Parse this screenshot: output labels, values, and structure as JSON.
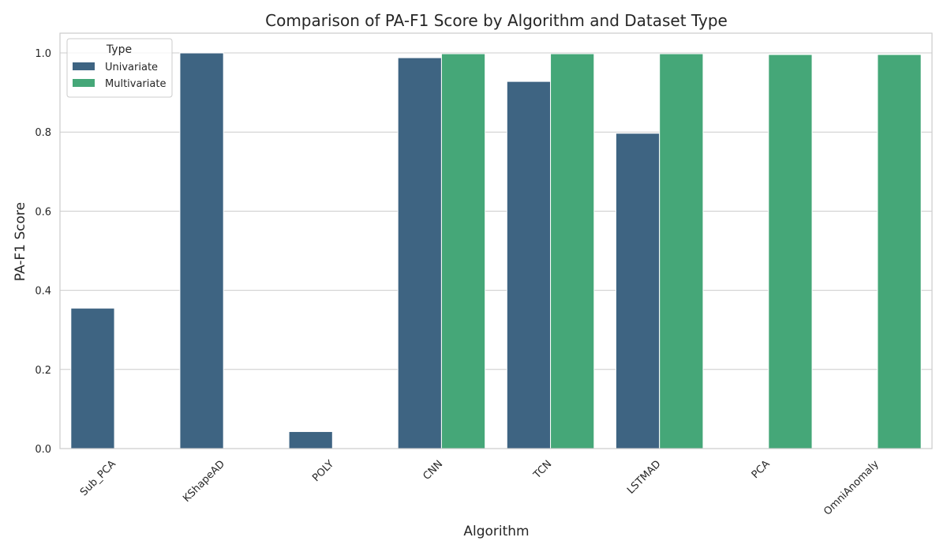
{
  "chart_data": {
    "type": "bar",
    "title": "Comparison of PA-F1 Score by Algorithm and Dataset Type",
    "xlabel": "Algorithm",
    "ylabel": "PA-F1 Score",
    "categories": [
      "Sub_PCA",
      "KShapeAD",
      "POLY",
      "CNN",
      "TCN",
      "LSTMAD",
      "PCA",
      "OmniAnomaly"
    ],
    "series": [
      {
        "name": "Univariate",
        "color": "#3e6482",
        "values": [
          0.355,
          1.0,
          0.043,
          0.988,
          0.928,
          0.797,
          null,
          null
        ]
      },
      {
        "name": "Multivariate",
        "color": "#45a778",
        "values": [
          null,
          null,
          null,
          0.998,
          0.998,
          0.998,
          0.996,
          0.996
        ]
      }
    ],
    "ylim": [
      0,
      1.05
    ],
    "yticks": [
      0.0,
      0.2,
      0.4,
      0.6,
      0.8,
      1.0
    ],
    "ytick_labels": [
      "0.0",
      "0.2",
      "0.4",
      "0.6",
      "0.8",
      "1.0"
    ],
    "grid": "horizontal",
    "legend": {
      "title": "Type",
      "placement": "top-left"
    }
  }
}
